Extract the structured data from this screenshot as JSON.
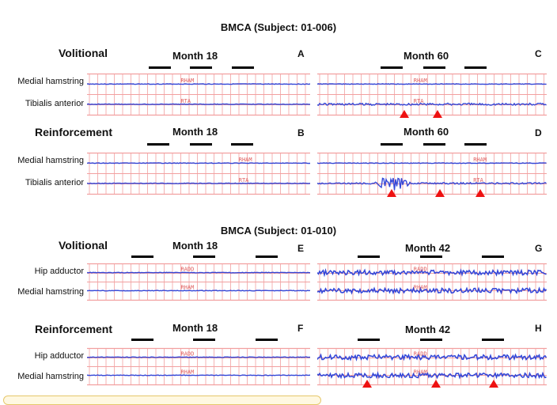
{
  "sections": [
    {
      "title": "BMCA (Subject: 01-006)"
    },
    {
      "title": "BMCA (Subject: 01-010)"
    }
  ],
  "labels": {
    "volitional": "Volitional",
    "reinforcement": "Reinforcement",
    "medial_hamstring": "Medial hamstring",
    "tibialis_anterior": "Tibialis anterior",
    "hip_adductor": "Hip adductor"
  },
  "colors": {
    "grid": "#f2a0a0",
    "trace": "#3548d8",
    "marker": "#ee1111",
    "bar": "#000000"
  },
  "chart_data": [
    {
      "type": "emg-trace",
      "panel": "A",
      "condition": "Volitional",
      "title": "Month 18",
      "channels": [
        {
          "name": "Medial hamstring",
          "tag": "RHAM",
          "activity": "quiet"
        },
        {
          "name": "Tibialis anterior",
          "tag": "RTA",
          "activity": "quiet"
        }
      ],
      "markers": []
    },
    {
      "type": "emg-trace",
      "panel": "C",
      "condition": "Volitional",
      "title": "Month 60",
      "channels": [
        {
          "name": "Medial hamstring",
          "tag": "RHAM",
          "activity": "quiet"
        },
        {
          "name": "Tibialis anterior",
          "tag": "RTA",
          "activity": "low"
        }
      ],
      "markers": [
        1,
        2
      ]
    },
    {
      "type": "emg-trace",
      "panel": "B",
      "condition": "Reinforcement",
      "title": "Month 18",
      "channels": [
        {
          "name": "Medial hamstring",
          "tag": "RHAM",
          "activity": "quiet"
        },
        {
          "name": "Tibialis anterior",
          "tag": "RTA",
          "activity": "quiet"
        }
      ],
      "markers": []
    },
    {
      "type": "emg-trace",
      "panel": "D",
      "condition": "Reinforcement",
      "title": "Month 60",
      "channels": [
        {
          "name": "Medial hamstring",
          "tag": "RHAM",
          "activity": "quiet"
        },
        {
          "name": "Tibialis anterior",
          "tag": "RTA",
          "activity": "burst"
        }
      ],
      "markers": [
        1,
        2,
        3
      ]
    },
    {
      "type": "emg-trace",
      "panel": "E",
      "condition": "Volitional",
      "title": "Month 18",
      "channels": [
        {
          "name": "Hip adductor",
          "tag": "RADD",
          "activity": "quiet"
        },
        {
          "name": "Medial hamstring",
          "tag": "RHAM",
          "activity": "quiet"
        }
      ],
      "markers": []
    },
    {
      "type": "emg-trace",
      "panel": "G",
      "condition": "Volitional",
      "title": "Month 42",
      "channels": [
        {
          "name": "Hip adductor",
          "tag": "RADD",
          "activity": "noisy"
        },
        {
          "name": "Medial hamstring",
          "tag": "RHAM",
          "activity": "noisy"
        }
      ],
      "markers": []
    },
    {
      "type": "emg-trace",
      "panel": "F",
      "condition": "Reinforcement",
      "title": "Month 18",
      "channels": [
        {
          "name": "Hip adductor",
          "tag": "RADD",
          "activity": "quiet"
        },
        {
          "name": "Medial hamstring",
          "tag": "RHAM",
          "activity": "quiet"
        }
      ],
      "markers": []
    },
    {
      "type": "emg-trace",
      "panel": "H",
      "condition": "Reinforcement",
      "title": "Month 42",
      "channels": [
        {
          "name": "Hip adductor",
          "tag": "RADD",
          "activity": "noisy"
        },
        {
          "name": "Medial hamstring",
          "tag": "RHAM",
          "activity": "noisy"
        }
      ],
      "markers": [
        1,
        2,
        3
      ]
    }
  ]
}
